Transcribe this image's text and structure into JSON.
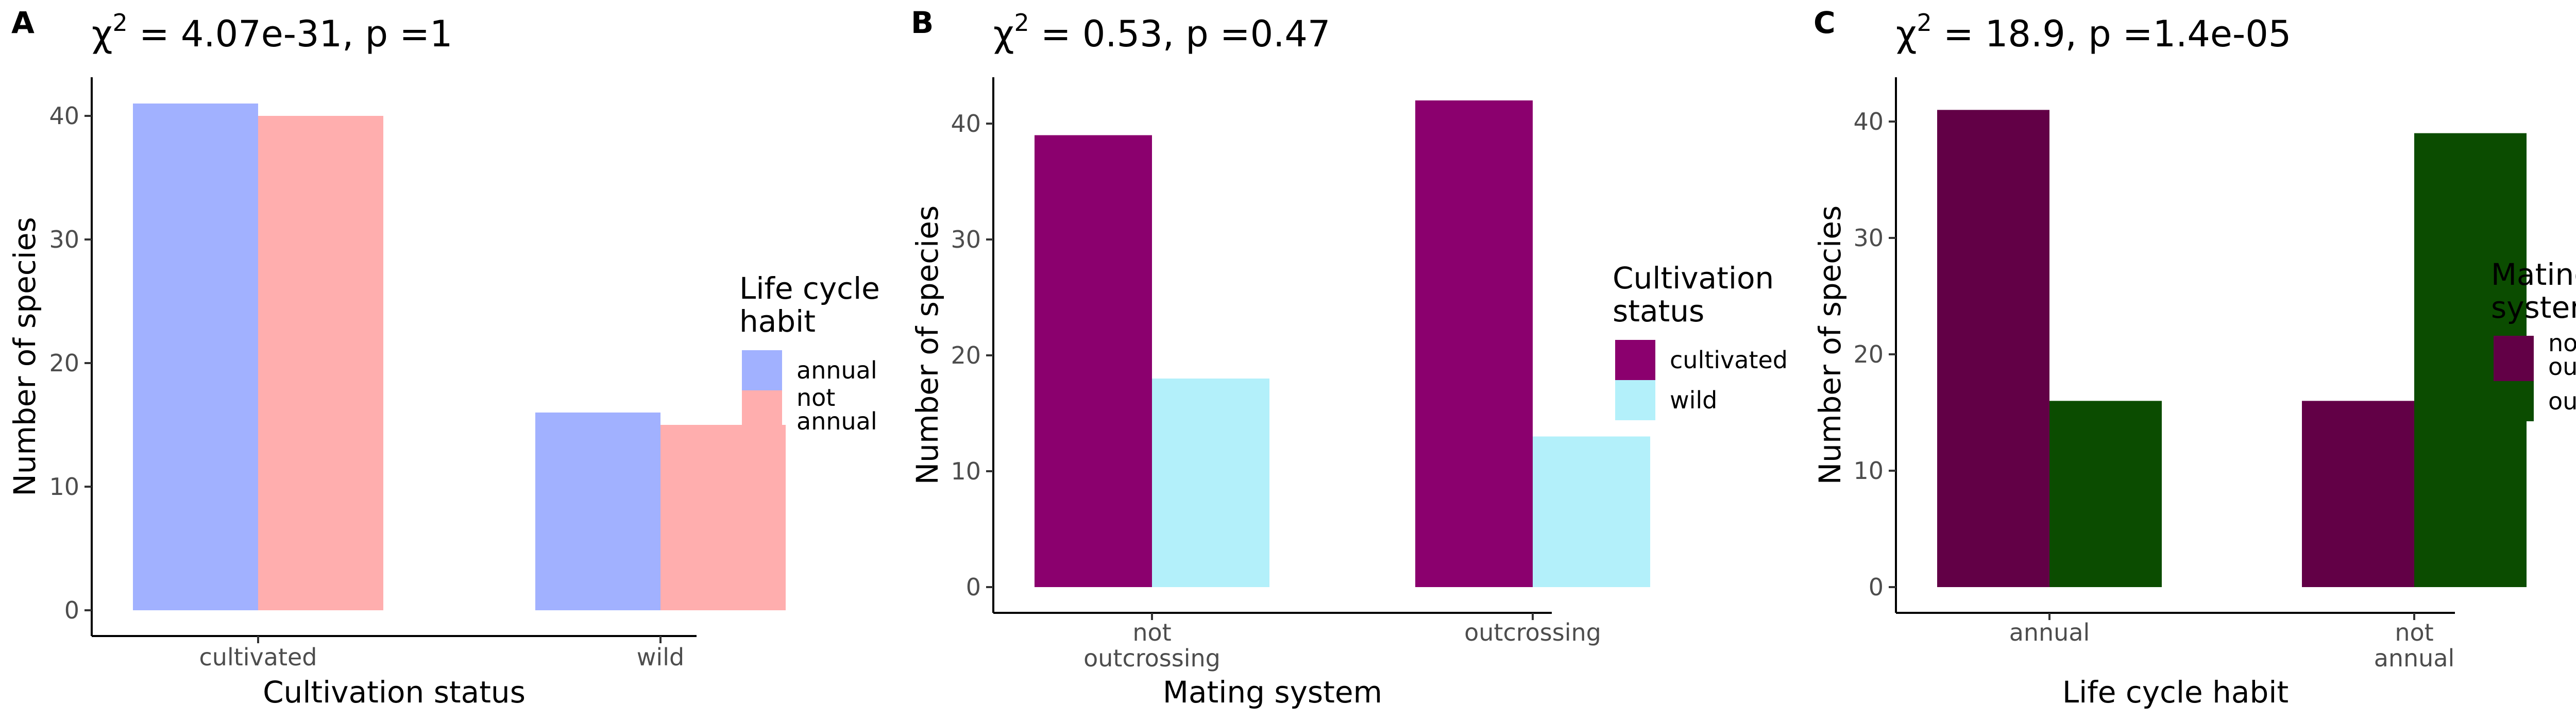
{
  "chart_data": [
    {
      "type": "bar",
      "panel": "A",
      "title": "χ² = 4.07e-31, p =1",
      "title_parts": {
        "chi": "χ",
        "sup": "2",
        "rest": " = 4.07e-31, p =1"
      },
      "xlabel": "Cultivation status",
      "ylabel": "Number of species",
      "categories": [
        [
          "cultivated"
        ],
        [
          "wild"
        ]
      ],
      "ylim": [
        0,
        43
      ],
      "yticks": [
        0,
        10,
        20,
        30,
        40
      ],
      "series": [
        {
          "name": [
            "annual"
          ],
          "color": "#A1B1FF",
          "values": [
            41,
            16
          ]
        },
        {
          "name": [
            "not",
            "annual"
          ],
          "color": "#FFAEAE",
          "values": [
            40,
            15
          ]
        }
      ],
      "legend": {
        "title": [
          "Life cycle",
          "habit"
        ],
        "position": "right"
      },
      "grid": false
    },
    {
      "type": "bar",
      "panel": "B",
      "title": "χ² = 0.53, p =0.47",
      "title_parts": {
        "chi": "χ",
        "sup": "2",
        "rest": " = 0.53, p =0.47"
      },
      "xlabel": "Mating system",
      "ylabel": "Number of species",
      "categories": [
        [
          "not",
          "outcrossing"
        ],
        [
          "outcrossing"
        ]
      ],
      "ylim": [
        0,
        44
      ],
      "yticks": [
        0,
        10,
        20,
        30,
        40
      ],
      "series": [
        {
          "name": [
            "cultivated"
          ],
          "color": "#8B006E",
          "values": [
            39,
            42
          ]
        },
        {
          "name": [
            "wild"
          ],
          "color": "#B3F0FA",
          "values": [
            18,
            13
          ]
        }
      ],
      "legend": {
        "title": [
          "Cultivation",
          "status"
        ],
        "position": "right"
      },
      "grid": false
    },
    {
      "type": "bar",
      "panel": "C",
      "title": "χ² = 18.9, p =1.4e-05",
      "title_parts": {
        "chi": "χ",
        "sup": "2",
        "rest": " = 18.9, p =1.4e-05"
      },
      "xlabel": "Life cycle habit",
      "ylabel": "Number of species",
      "categories": [
        [
          "annual"
        ],
        [
          "not",
          "annual"
        ]
      ],
      "ylim": [
        0,
        43
      ],
      "yticks": [
        0,
        10,
        20,
        30,
        40
      ],
      "series": [
        {
          "name": [
            "not",
            "outcrossing"
          ],
          "color": "#620046",
          "values": [
            41,
            16
          ]
        },
        {
          "name": [
            "outcrossing"
          ],
          "color": "#0B4C00",
          "values": [
            16,
            39
          ]
        }
      ],
      "legend": {
        "title": [
          "Mating",
          "system"
        ],
        "position": "right"
      },
      "grid": false
    }
  ]
}
